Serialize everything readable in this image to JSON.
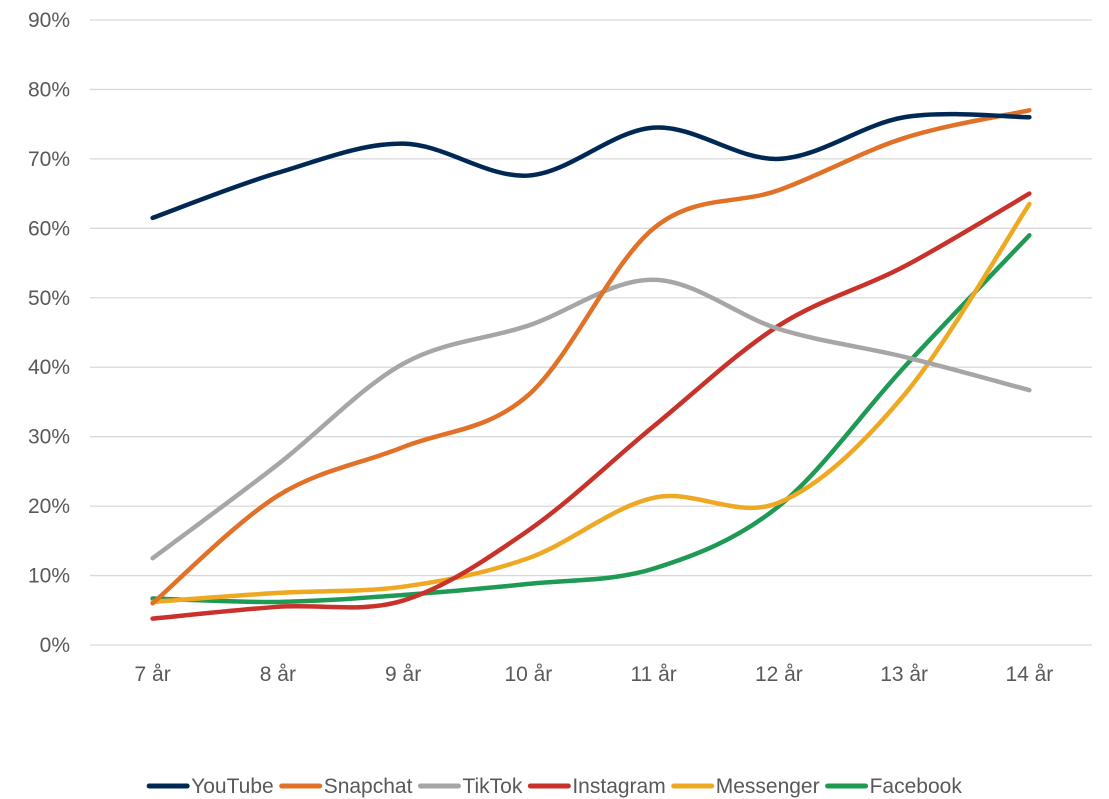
{
  "chart_data": {
    "type": "line",
    "smooth": true,
    "categories": [
      "7 år",
      "8 år",
      "9 år",
      "10 år",
      "11 år",
      "12 år",
      "13 år",
      "14 år"
    ],
    "ylim": [
      0,
      90
    ],
    "yticks": [
      0,
      10,
      20,
      30,
      40,
      50,
      60,
      70,
      80,
      90
    ],
    "ytick_format": "percent",
    "grid": true,
    "legend": "bottom",
    "series": [
      {
        "name": "YouTube",
        "color": "#002855",
        "values": [
          61.5,
          68,
          72.2,
          67.6,
          74.5,
          70,
          76,
          76
        ]
      },
      {
        "name": "Snapchat",
        "color": "#E07127",
        "values": [
          6,
          21.5,
          28.5,
          36,
          60,
          65.5,
          73,
          77
        ]
      },
      {
        "name": "TikTok",
        "color": "#A6A6A6",
        "values": [
          12.5,
          26,
          40.5,
          46,
          52.6,
          45.5,
          41.5,
          36.7
        ]
      },
      {
        "name": "Instagram",
        "color": "#C8322A",
        "values": [
          3.8,
          5.5,
          6.4,
          16.5,
          31.5,
          46,
          54.5,
          65
        ]
      },
      {
        "name": "Messenger",
        "color": "#EFA822",
        "values": [
          6.2,
          7.5,
          8.4,
          12.5,
          21.2,
          20.5,
          36,
          63.5
        ]
      },
      {
        "name": "Facebook",
        "color": "#1F9A55",
        "values": [
          6.7,
          6.2,
          7.2,
          8.8,
          11,
          20,
          40,
          59
        ]
      }
    ]
  }
}
